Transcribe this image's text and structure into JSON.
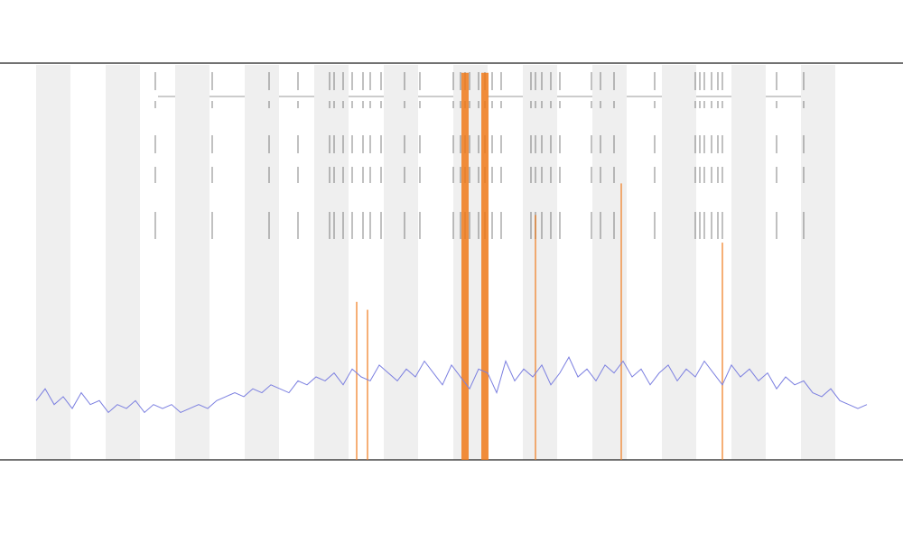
{
  "chart_data": {
    "type": "line",
    "xlim": [
      0,
      920
    ],
    "ylim": [
      0,
      100
    ],
    "x": [
      0,
      10,
      20,
      30,
      40,
      50,
      60,
      70,
      80,
      90,
      100,
      110,
      120,
      130,
      140,
      150,
      160,
      170,
      180,
      190,
      200,
      210,
      220,
      230,
      240,
      250,
      260,
      270,
      280,
      290,
      300,
      310,
      320,
      330,
      340,
      350,
      360,
      370,
      380,
      390,
      400,
      410,
      420,
      430,
      440,
      450,
      460,
      470,
      480,
      490,
      500,
      510,
      520,
      530,
      540,
      550,
      560,
      570,
      580,
      590,
      600,
      610,
      620,
      630,
      640,
      650,
      660,
      670,
      680,
      690,
      700,
      710,
      720,
      730,
      740,
      750,
      760,
      770,
      780,
      790,
      800,
      810,
      820,
      830,
      840,
      850,
      860,
      870,
      880,
      890,
      900,
      910,
      920
    ],
    "series": [
      {
        "color": "#7b7fe0",
        "values": [
          15,
          18,
          14,
          16,
          13,
          17,
          14,
          15,
          12,
          14,
          13,
          15,
          12,
          14,
          13,
          14,
          12,
          13,
          14,
          13,
          15,
          16,
          17,
          16,
          18,
          17,
          19,
          18,
          17,
          20,
          19,
          21,
          20,
          22,
          19,
          23,
          21,
          20,
          24,
          22,
          20,
          23,
          21,
          25,
          22,
          19,
          24,
          21,
          18,
          23,
          22,
          17,
          25,
          20,
          23,
          21,
          24,
          19,
          22,
          26,
          21,
          23,
          20,
          24,
          22,
          25,
          21,
          23,
          19,
          22,
          24,
          20,
          23,
          21,
          25,
          22,
          19,
          24,
          21,
          23,
          20,
          22,
          18,
          21,
          19,
          20,
          17,
          16,
          18,
          15,
          14,
          13,
          14
        ]
      }
    ],
    "spikes": {
      "color": "#f07a1a",
      "x": [
        355,
        367,
        475,
        497,
        553,
        648,
        760
      ],
      "values": [
        40,
        38,
        98,
        98,
        62,
        70,
        55
      ]
    },
    "features": {
      "color": "#222222",
      "x": [
        132,
        195,
        258,
        290,
        325,
        330,
        340,
        350,
        362,
        370,
        382,
        408,
        425,
        462,
        470,
        475,
        480,
        490,
        497,
        505,
        515,
        548,
        553,
        560,
        570,
        580,
        615,
        625,
        640,
        685,
        730,
        735,
        740,
        748,
        755,
        760,
        820,
        850
      ]
    }
  }
}
